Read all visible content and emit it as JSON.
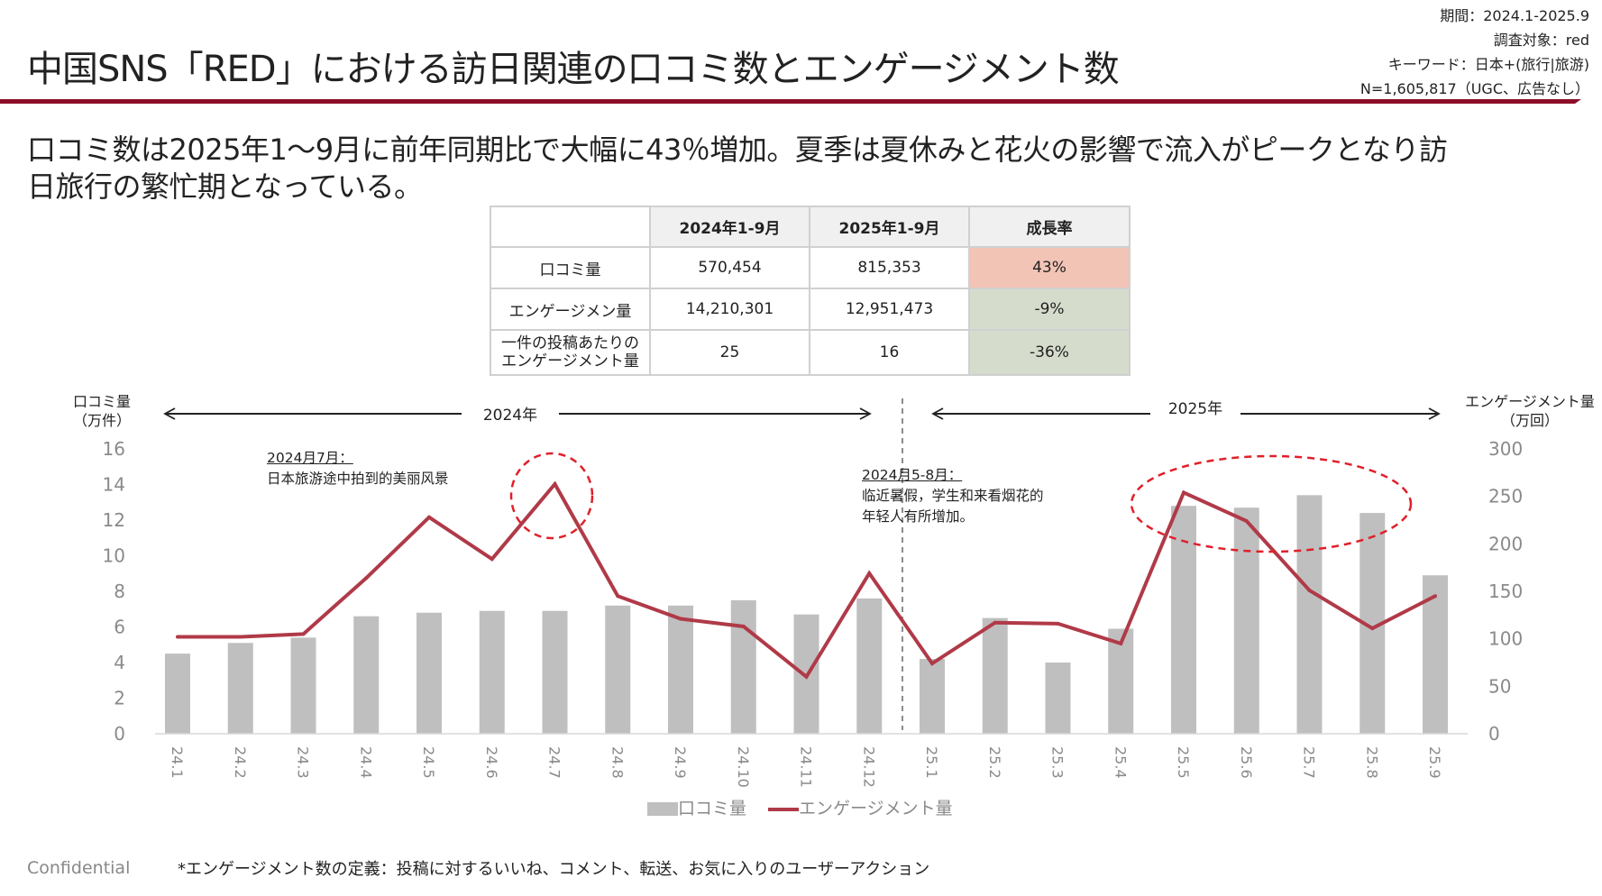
{
  "header": {
    "title": "中国SNS「RED」における訪日関連の口コミ数とエンゲージメント数",
    "meta": [
      "期間：2024.1-2025.9",
      "調査対象：red",
      "キーワード：日本+(旅行|旅游)",
      "N=1,605,817（UGC、広告なし）"
    ],
    "accent_color": "#8c0f2a"
  },
  "subtitle": {
    "line1": "口コミ数は2025年1～9月に前年同期比で大幅に43％増加。夏季は夏休みと花火の影響で流入がピークとなり訪",
    "line2": "日旅行の繁忙期となっている。"
  },
  "summary_table": {
    "headers": [
      "",
      "2024年1-9月",
      "2025年1-9月",
      "成長率"
    ],
    "rows": [
      {
        "label": "口コミ量",
        "v2024": "570,454",
        "v2025": "815,353",
        "growth": "43%",
        "trend": "positive"
      },
      {
        "label": "エンゲージメン量",
        "v2024": "14,210,301",
        "v2025": "12,951,473",
        "growth": "-9%",
        "trend": "negative"
      },
      {
        "label_line1": "一件の投稿あたりの",
        "label_line2": "エンゲージメント量",
        "v2024": "25",
        "v2025": "16",
        "growth": "-36%",
        "trend": "negative"
      }
    ],
    "colors": {
      "positive": "#f2c4b6",
      "negative": "#d6dccc"
    }
  },
  "chart_data": {
    "type": "bar+line",
    "categories": [
      "24.1",
      "24.2",
      "24.3",
      "24.4",
      "24.5",
      "24.6",
      "24.7",
      "24.8",
      "24.9",
      "24.10",
      "24.11",
      "24.12",
      "25.1",
      "25.2",
      "25.3",
      "25.4",
      "25.5",
      "25.6",
      "25.7",
      "25.8",
      "25.9"
    ],
    "series": [
      {
        "name": "口コミ量",
        "type": "bar",
        "axis": "left",
        "color": "#bfbfbf",
        "values": [
          4.5,
          5.1,
          5.4,
          6.6,
          6.8,
          6.9,
          6.9,
          7.2,
          7.2,
          7.5,
          6.7,
          7.6,
          4.2,
          6.5,
          4.0,
          5.9,
          12.8,
          12.7,
          13.4,
          12.4,
          8.9
        ]
      },
      {
        "name": "エンゲージメント量",
        "type": "line",
        "axis": "right",
        "color": "#b03a48",
        "values": [
          102,
          102,
          105,
          164,
          228,
          184,
          263,
          145,
          121,
          113,
          60,
          169,
          74,
          117,
          116,
          95,
          254,
          224,
          151,
          111,
          145
        ]
      }
    ],
    "left_axis": {
      "label_line1": "口コミ量",
      "label_line2": "（万件）",
      "ylim": [
        0,
        16
      ],
      "ticks": [
        0,
        2,
        4,
        6,
        8,
        10,
        12,
        14,
        16
      ]
    },
    "right_axis": {
      "label_line1": "エンゲージメント量",
      "label_line2": "（万回）",
      "ylim": [
        0,
        300
      ],
      "ticks": [
        0,
        50,
        100,
        150,
        200,
        250,
        300
      ]
    },
    "periods": [
      {
        "label": "2024年"
      },
      {
        "label": "2025年"
      }
    ],
    "annotations": [
      {
        "heading": "2024月7月：",
        "lines": [
          "日本旅游途中拍到的美丽风景"
        ],
        "highlight": "24.7"
      },
      {
        "heading": "2024月5-8月：",
        "lines": [
          "临近暑假，学生和来看烟花的",
          "年轻人有所增加。"
        ],
        "highlight": "25.5-25.8"
      }
    ],
    "highlight_color": "#e0202a",
    "legend": [
      "口コミ量",
      "エンゲージメント量"
    ],
    "legend_position": "bottom",
    "grid": false
  },
  "footer": {
    "confidential": "Confidential",
    "definition": "*エンゲージメント数の定義：投稿に対するいいね、コメント、転送、お気に入りのユーザーアクション"
  }
}
